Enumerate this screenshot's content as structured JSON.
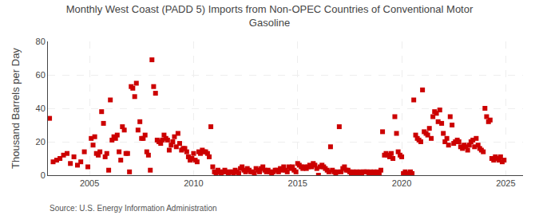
{
  "chart_data": {
    "type": "scatter",
    "title": "Monthly West Coast (PADD 5) Imports from Non-OPEC Countries of Conventional Motor\nGasoline",
    "ylabel": "Thousand Barrels per Day",
    "annotations": [
      "Source: U.S. Energy Information Administration"
    ],
    "color": "#cc0000",
    "marker": "square",
    "grid": true,
    "xlim": [
      2003.0,
      2025.83
    ],
    "xticks": [
      2005,
      2010,
      2015,
      2020,
      2025
    ],
    "ylim": [
      0,
      80
    ],
    "yticks": [
      0,
      20,
      40,
      60,
      80
    ],
    "x": [
      2003.08,
      2003.25,
      2003.42,
      2003.58,
      2003.75,
      2003.92,
      2004.08,
      2004.25,
      2004.42,
      2004.58,
      2004.75,
      2004.92,
      2005.08,
      2005.17,
      2005.25,
      2005.33,
      2005.42,
      2005.5,
      2005.58,
      2005.67,
      2005.75,
      2005.83,
      2005.92,
      2006.0,
      2006.08,
      2006.17,
      2006.25,
      2006.33,
      2006.42,
      2006.5,
      2006.58,
      2006.67,
      2006.75,
      2006.83,
      2006.92,
      2007.0,
      2007.08,
      2007.17,
      2007.25,
      2007.33,
      2007.42,
      2007.5,
      2007.58,
      2007.67,
      2007.75,
      2007.83,
      2007.92,
      2008.0,
      2008.08,
      2008.17,
      2008.25,
      2008.33,
      2008.42,
      2008.5,
      2008.58,
      2008.67,
      2008.75,
      2008.83,
      2008.92,
      2009.0,
      2009.08,
      2009.17,
      2009.25,
      2009.33,
      2009.42,
      2009.5,
      2009.58,
      2009.67,
      2009.75,
      2009.83,
      2009.92,
      2010.0,
      2010.08,
      2010.17,
      2010.25,
      2010.33,
      2010.42,
      2010.5,
      2010.58,
      2010.67,
      2010.75,
      2010.83,
      2010.92,
      2011.0,
      2011.08,
      2011.17,
      2011.25,
      2011.33,
      2011.42,
      2011.5,
      2011.58,
      2011.67,
      2011.75,
      2011.83,
      2011.92,
      2012.0,
      2012.08,
      2012.17,
      2012.25,
      2012.33,
      2012.42,
      2012.5,
      2012.58,
      2012.67,
      2012.75,
      2012.83,
      2012.92,
      2013.0,
      2013.08,
      2013.17,
      2013.25,
      2013.33,
      2013.42,
      2013.5,
      2013.58,
      2013.67,
      2013.75,
      2013.83,
      2013.92,
      2014.0,
      2014.08,
      2014.17,
      2014.25,
      2014.33,
      2014.42,
      2014.5,
      2014.58,
      2014.67,
      2014.75,
      2014.83,
      2014.92,
      2015.0,
      2015.08,
      2015.17,
      2015.25,
      2015.33,
      2015.42,
      2015.5,
      2015.58,
      2015.67,
      2015.75,
      2015.83,
      2015.92,
      2016.0,
      2016.08,
      2016.17,
      2016.25,
      2016.33,
      2016.42,
      2016.5,
      2016.58,
      2016.67,
      2016.75,
      2016.83,
      2016.92,
      2017.0,
      2017.08,
      2017.17,
      2017.25,
      2017.33,
      2017.42,
      2017.5,
      2017.58,
      2017.67,
      2017.75,
      2017.83,
      2017.92,
      2018.0,
      2018.08,
      2018.17,
      2018.25,
      2018.33,
      2018.42,
      2018.5,
      2018.58,
      2018.67,
      2018.75,
      2018.83,
      2018.92,
      2019.0,
      2019.08,
      2019.17,
      2019.25,
      2019.33,
      2019.42,
      2019.5,
      2019.58,
      2019.67,
      2019.75,
      2019.83,
      2019.92,
      2020.0,
      2020.08,
      2020.17,
      2020.25,
      2020.33,
      2020.42,
      2020.5,
      2020.58,
      2020.67,
      2020.75,
      2020.83,
      2020.92,
      2021.0,
      2021.08,
      2021.17,
      2021.25,
      2021.33,
      2021.42,
      2021.5,
      2021.58,
      2021.67,
      2021.75,
      2021.83,
      2021.92,
      2022.0,
      2022.08,
      2022.17,
      2022.25,
      2022.33,
      2022.42,
      2022.5,
      2022.58,
      2022.67,
      2022.75,
      2022.83,
      2022.92,
      2023.0,
      2023.08,
      2023.17,
      2023.25,
      2023.33,
      2023.42,
      2023.5,
      2023.58,
      2023.67,
      2023.75,
      2023.83,
      2023.92,
      2024.0,
      2024.08,
      2024.17,
      2024.25,
      2024.33,
      2024.42,
      2024.5,
      2024.58,
      2024.67,
      2024.75,
      2024.83,
      2024.92
    ],
    "values": [
      34,
      8,
      9,
      10,
      12,
      13,
      7,
      11,
      6,
      8,
      14,
      5,
      22,
      18,
      23,
      13,
      12,
      14,
      38,
      31,
      11,
      13,
      3,
      45,
      21,
      23,
      22,
      24,
      14,
      9,
      29,
      27,
      13,
      13,
      2,
      53,
      52,
      47,
      55,
      27,
      32,
      22,
      22,
      24,
      14,
      12,
      3,
      69,
      53,
      49,
      21,
      20,
      19,
      21,
      24,
      22,
      21,
      15,
      18,
      20,
      23,
      17,
      25,
      19,
      15,
      16,
      16,
      14,
      11,
      9,
      10,
      13,
      9,
      8,
      14,
      13,
      15,
      14,
      14,
      13,
      11,
      29,
      5,
      2,
      1,
      3,
      2,
      1,
      2,
      3,
      2,
      1,
      2,
      2,
      1,
      3,
      2,
      1,
      4,
      5,
      3,
      2,
      4,
      3,
      2,
      2,
      1,
      4,
      3,
      2,
      4,
      5,
      3,
      2,
      3,
      2,
      1,
      2,
      3,
      3,
      2,
      4,
      3,
      5,
      3,
      2,
      5,
      4,
      5,
      3,
      2,
      7,
      6,
      5,
      4,
      5,
      4,
      5,
      6,
      5,
      7,
      6,
      4,
      0,
      5,
      6,
      5,
      4,
      3,
      2,
      17,
      3,
      2,
      1,
      2,
      29,
      2,
      4,
      5,
      3,
      3,
      2,
      1,
      2,
      1,
      2,
      1,
      2,
      1,
      2,
      2,
      2,
      1,
      2,
      1,
      2,
      1,
      2,
      1,
      3,
      26,
      12,
      13,
      12,
      11,
      13,
      10,
      35,
      25,
      14,
      12,
      11,
      1,
      2,
      1,
      1,
      2,
      1,
      45,
      24,
      22,
      21,
      20,
      51,
      26,
      25,
      24,
      28,
      22,
      35,
      38,
      37,
      32,
      39,
      31,
      25,
      20,
      22,
      18,
      35,
      30,
      19,
      20,
      21,
      20,
      17,
      16,
      18,
      17,
      15,
      18,
      20,
      21,
      17,
      22,
      18,
      16,
      15,
      14,
      40,
      35,
      32,
      33,
      10,
      9,
      11,
      10,
      9,
      11,
      8,
      9
    ]
  }
}
